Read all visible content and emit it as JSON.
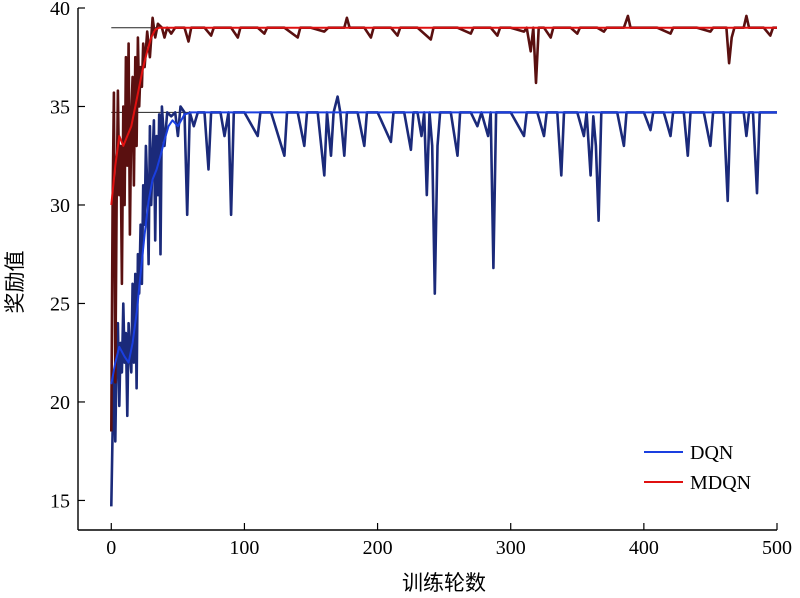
{
  "chart_data": {
    "type": "line",
    "xlabel": "训练轮数",
    "ylabel": "奖励值",
    "xlim": [
      -25,
      500
    ],
    "ylim": [
      13.5,
      40
    ],
    "xticks": [
      0,
      100,
      200,
      300,
      400,
      500
    ],
    "yticks": [
      15,
      20,
      25,
      30,
      35,
      40
    ],
    "grid": false,
    "legend_position": "bottom-right",
    "series": [
      {
        "name": "DQN",
        "color": "#1a3fe0",
        "raw_color": "#1b2a7a",
        "plateau": 34.7,
        "smoothed": [
          [
            0,
            20.9
          ],
          [
            3,
            22.0
          ],
          [
            6,
            22.8
          ],
          [
            10,
            22.3
          ],
          [
            13,
            22.0
          ],
          [
            16,
            23.0
          ],
          [
            19,
            24.5
          ],
          [
            22,
            26.5
          ],
          [
            25,
            28.5
          ],
          [
            28,
            30.2
          ],
          [
            31,
            31.3
          ],
          [
            34,
            31.8
          ],
          [
            37,
            32.5
          ],
          [
            40,
            33.3
          ],
          [
            43,
            34.0
          ],
          [
            46,
            34.3
          ],
          [
            50,
            34.0
          ],
          [
            55,
            34.6
          ],
          [
            60,
            34.7
          ],
          [
            500,
            34.7
          ]
        ],
        "raw": [
          [
            0,
            14.7
          ],
          [
            1,
            18.5
          ],
          [
            2,
            21.5
          ],
          [
            3,
            18.0
          ],
          [
            4,
            22.5
          ],
          [
            5,
            24.0
          ],
          [
            6,
            19.8
          ],
          [
            7,
            23.0
          ],
          [
            8,
            21.5
          ],
          [
            9,
            25.0
          ],
          [
            10,
            22.0
          ],
          [
            11,
            23.5
          ],
          [
            12,
            19.3
          ],
          [
            13,
            24.0
          ],
          [
            14,
            22.5
          ],
          [
            15,
            21.5
          ],
          [
            16,
            26.0
          ],
          [
            17,
            22.0
          ],
          [
            18,
            26.5
          ],
          [
            19,
            20.7
          ],
          [
            20,
            27.5
          ],
          [
            21,
            25.5
          ],
          [
            22,
            29.0
          ],
          [
            23,
            26.0
          ],
          [
            24,
            31.0
          ],
          [
            25,
            29.0
          ],
          [
            26,
            33.0
          ],
          [
            27,
            31.0
          ],
          [
            28,
            27.0
          ],
          [
            29,
            34.0
          ],
          [
            30,
            30.0
          ],
          [
            31,
            32.5
          ],
          [
            32,
            34.3
          ],
          [
            33,
            28.2
          ],
          [
            34,
            33.5
          ],
          [
            35,
            30.5
          ],
          [
            36,
            34.6
          ],
          [
            37,
            27.5
          ],
          [
            38,
            35.0
          ],
          [
            40,
            33.0
          ],
          [
            42,
            34.7
          ],
          [
            45,
            34.5
          ],
          [
            48,
            34.7
          ],
          [
            50,
            33.5
          ],
          [
            52,
            35.0
          ],
          [
            55,
            34.7
          ],
          [
            57,
            29.5
          ],
          [
            59,
            34.7
          ],
          [
            62,
            34.0
          ],
          [
            65,
            34.7
          ],
          [
            70,
            34.7
          ],
          [
            73,
            31.8
          ],
          [
            75,
            34.7
          ],
          [
            82,
            34.7
          ],
          [
            85,
            33.5
          ],
          [
            88,
            34.7
          ],
          [
            90,
            29.5
          ],
          [
            92,
            34.7
          ],
          [
            100,
            34.7
          ],
          [
            110,
            33.5
          ],
          [
            112,
            34.7
          ],
          [
            120,
            34.7
          ],
          [
            130,
            32.5
          ],
          [
            132,
            34.7
          ],
          [
            140,
            34.7
          ],
          [
            145,
            33.0
          ],
          [
            147,
            34.7
          ],
          [
            155,
            34.7
          ],
          [
            160,
            31.5
          ],
          [
            162,
            34.7
          ],
          [
            165,
            32.5
          ],
          [
            167,
            34.7
          ],
          [
            170,
            35.5
          ],
          [
            172,
            34.7
          ],
          [
            175,
            32.5
          ],
          [
            177,
            34.7
          ],
          [
            185,
            34.7
          ],
          [
            190,
            33.0
          ],
          [
            192,
            34.7
          ],
          [
            200,
            34.7
          ],
          [
            210,
            33.2
          ],
          [
            212,
            34.7
          ],
          [
            220,
            34.7
          ],
          [
            225,
            32.8
          ],
          [
            227,
            34.7
          ],
          [
            230,
            34.7
          ],
          [
            233,
            33.5
          ],
          [
            235,
            34.7
          ],
          [
            237,
            30.5
          ],
          [
            239,
            34.7
          ],
          [
            241,
            33.0
          ],
          [
            243,
            25.5
          ],
          [
            245,
            33.0
          ],
          [
            247,
            34.7
          ],
          [
            255,
            34.7
          ],
          [
            260,
            32.5
          ],
          [
            262,
            34.7
          ],
          [
            270,
            34.7
          ],
          [
            275,
            34.0
          ],
          [
            278,
            34.7
          ],
          [
            283,
            33.5
          ],
          [
            285,
            34.7
          ],
          [
            287,
            26.8
          ],
          [
            289,
            34.7
          ],
          [
            300,
            34.7
          ],
          [
            310,
            33.5
          ],
          [
            312,
            34.7
          ],
          [
            320,
            34.7
          ],
          [
            325,
            33.5
          ],
          [
            327,
            34.7
          ],
          [
            335,
            34.7
          ],
          [
            338,
            31.5
          ],
          [
            340,
            34.7
          ],
          [
            350,
            34.7
          ],
          [
            355,
            33.5
          ],
          [
            357,
            34.7
          ],
          [
            360,
            31.5
          ],
          [
            362,
            34.5
          ],
          [
            364,
            33.0
          ],
          [
            366,
            29.2
          ],
          [
            368,
            34.7
          ],
          [
            380,
            34.7
          ],
          [
            385,
            33.0
          ],
          [
            387,
            34.7
          ],
          [
            400,
            34.7
          ],
          [
            405,
            33.8
          ],
          [
            407,
            34.7
          ],
          [
            415,
            34.7
          ],
          [
            420,
            33.5
          ],
          [
            422,
            34.7
          ],
          [
            430,
            34.7
          ],
          [
            433,
            32.5
          ],
          [
            435,
            34.7
          ],
          [
            445,
            34.7
          ],
          [
            450,
            33.0
          ],
          [
            452,
            34.7
          ],
          [
            460,
            34.7
          ],
          [
            463,
            30.2
          ],
          [
            465,
            34.7
          ],
          [
            475,
            34.7
          ],
          [
            477,
            33.5
          ],
          [
            479,
            34.7
          ],
          [
            482,
            34.7
          ],
          [
            485,
            30.6
          ],
          [
            487,
            34.7
          ],
          [
            500,
            34.7
          ]
        ]
      },
      {
        "name": "MDQN",
        "color": "#e01010",
        "raw_color": "#5a1010",
        "plateau": 39.0,
        "smoothed": [
          [
            0,
            30.0
          ],
          [
            3,
            32.0
          ],
          [
            6,
            33.5
          ],
          [
            9,
            33.0
          ],
          [
            12,
            33.5
          ],
          [
            15,
            34.0
          ],
          [
            18,
            35.0
          ],
          [
            21,
            36.0
          ],
          [
            24,
            37.0
          ],
          [
            27,
            37.8
          ],
          [
            30,
            38.5
          ],
          [
            33,
            38.9
          ],
          [
            36,
            39.0
          ],
          [
            500,
            39.0
          ]
        ],
        "raw": [
          [
            0,
            18.5
          ],
          [
            1,
            30.0
          ],
          [
            2,
            35.7
          ],
          [
            3,
            21.0
          ],
          [
            4,
            30.0
          ],
          [
            5,
            35.8
          ],
          [
            6,
            30.5
          ],
          [
            7,
            33.0
          ],
          [
            8,
            26.0
          ],
          [
            9,
            35.0
          ],
          [
            10,
            30.0
          ],
          [
            11,
            37.5
          ],
          [
            12,
            32.0
          ],
          [
            13,
            38.2
          ],
          [
            14,
            28.5
          ],
          [
            15,
            34.5
          ],
          [
            16,
            36.5
          ],
          [
            17,
            31.0
          ],
          [
            18,
            37.5
          ],
          [
            19,
            33.0
          ],
          [
            20,
            38.5
          ],
          [
            21,
            35.0
          ],
          [
            22,
            37.0
          ],
          [
            23,
            36.0
          ],
          [
            24,
            38.2
          ],
          [
            25,
            37.0
          ],
          [
            27,
            38.8
          ],
          [
            29,
            37.5
          ],
          [
            31,
            39.5
          ],
          [
            33,
            38.5
          ],
          [
            35,
            39.2
          ],
          [
            38,
            39.0
          ],
          [
            40,
            38.5
          ],
          [
            42,
            39.0
          ],
          [
            45,
            38.7
          ],
          [
            48,
            39.0
          ],
          [
            55,
            39.0
          ],
          [
            58,
            38.3
          ],
          [
            60,
            39.0
          ],
          [
            70,
            39.0
          ],
          [
            75,
            38.6
          ],
          [
            77,
            39.0
          ],
          [
            90,
            39.0
          ],
          [
            95,
            38.5
          ],
          [
            97,
            39.0
          ],
          [
            110,
            39.0
          ],
          [
            115,
            38.7
          ],
          [
            117,
            39.0
          ],
          [
            130,
            39.0
          ],
          [
            140,
            38.5
          ],
          [
            142,
            39.0
          ],
          [
            150,
            39.0
          ],
          [
            160,
            38.8
          ],
          [
            163,
            39.0
          ],
          [
            175,
            39.0
          ],
          [
            177,
            39.5
          ],
          [
            179,
            39.0
          ],
          [
            190,
            39.0
          ],
          [
            195,
            38.5
          ],
          [
            197,
            39.0
          ],
          [
            210,
            39.0
          ],
          [
            215,
            38.6
          ],
          [
            217,
            39.0
          ],
          [
            230,
            39.0
          ],
          [
            240,
            38.4
          ],
          [
            242,
            39.0
          ],
          [
            260,
            39.0
          ],
          [
            270,
            38.7
          ],
          [
            272,
            39.0
          ],
          [
            285,
            39.0
          ],
          [
            290,
            38.6
          ],
          [
            292,
            39.0
          ],
          [
            300,
            39.0
          ],
          [
            310,
            38.8
          ],
          [
            312,
            39.0
          ],
          [
            315,
            37.8
          ],
          [
            317,
            39.0
          ],
          [
            319,
            36.2
          ],
          [
            321,
            39.0
          ],
          [
            325,
            39.0
          ],
          [
            330,
            38.5
          ],
          [
            332,
            39.0
          ],
          [
            345,
            39.0
          ],
          [
            350,
            38.7
          ],
          [
            352,
            39.0
          ],
          [
            365,
            39.0
          ],
          [
            370,
            38.8
          ],
          [
            372,
            39.0
          ],
          [
            385,
            39.0
          ],
          [
            388,
            39.6
          ],
          [
            390,
            39.0
          ],
          [
            410,
            39.0
          ],
          [
            420,
            38.7
          ],
          [
            422,
            39.0
          ],
          [
            440,
            39.0
          ],
          [
            450,
            38.8
          ],
          [
            452,
            39.0
          ],
          [
            462,
            39.0
          ],
          [
            464,
            37.2
          ],
          [
            466,
            38.5
          ],
          [
            468,
            39.0
          ],
          [
            475,
            39.0
          ],
          [
            477,
            39.6
          ],
          [
            479,
            39.0
          ],
          [
            490,
            39.0
          ],
          [
            495,
            38.6
          ],
          [
            497,
            39.0
          ],
          [
            500,
            39.0
          ]
        ]
      }
    ]
  }
}
